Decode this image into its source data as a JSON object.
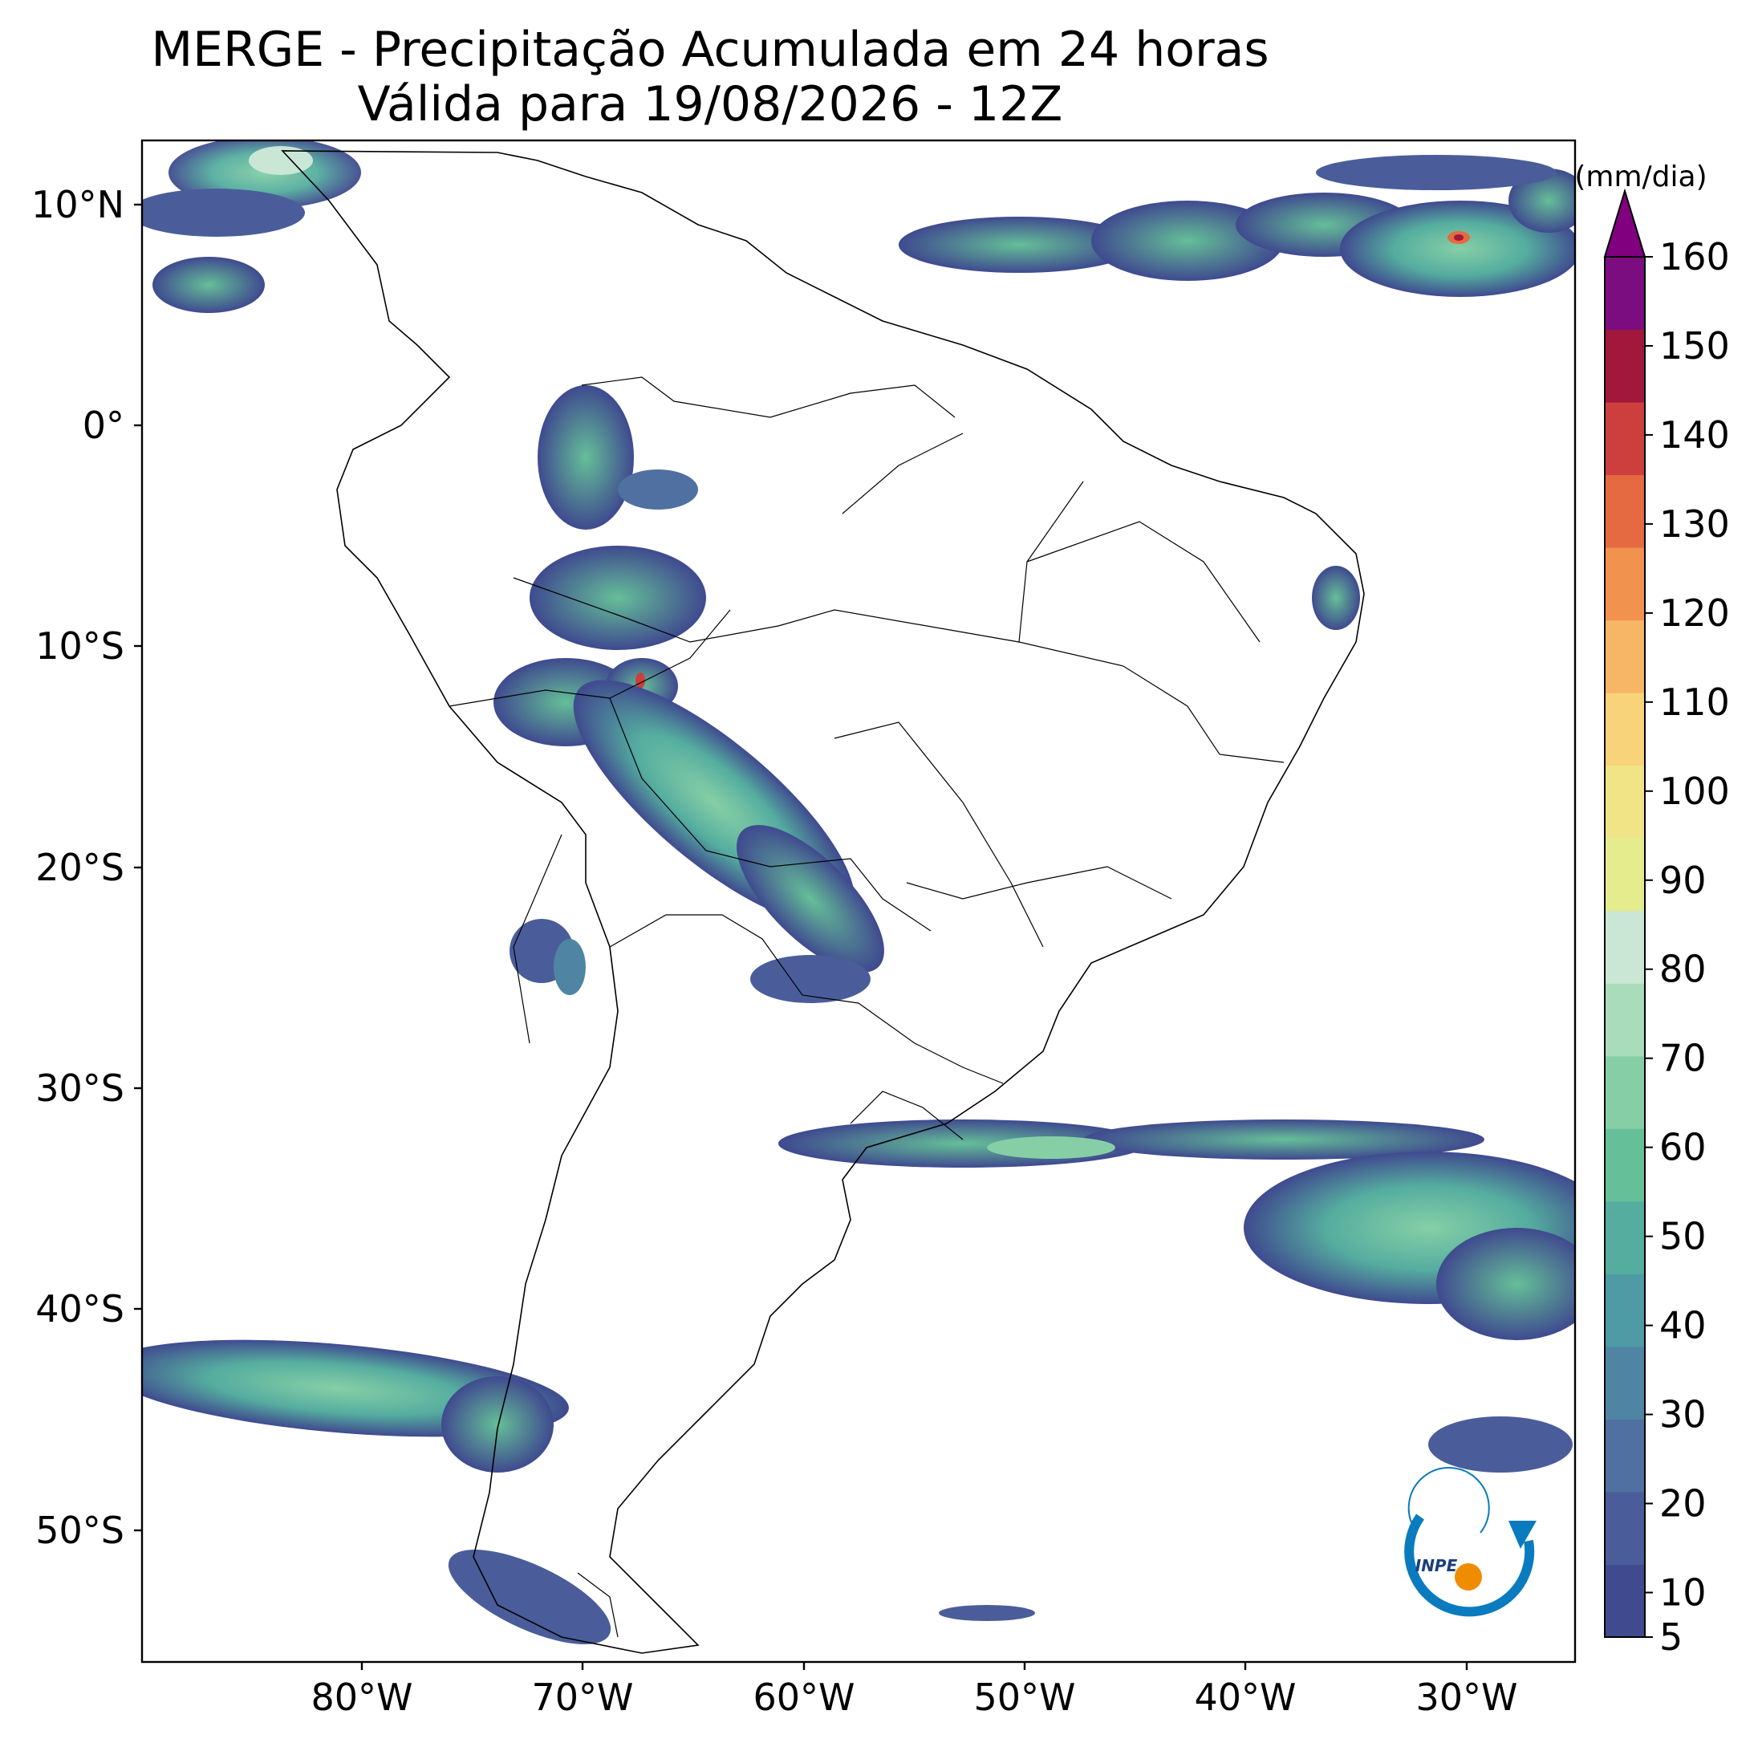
{
  "title": {
    "line1": "MERGE - Precipitação Acumulada em 24 horas",
    "line2": "Válida para 19/08/2026 - 12Z"
  },
  "map": {
    "lat_labels": [
      "10°N",
      "0°",
      "10°S",
      "20°S",
      "30°S",
      "40°S",
      "50°S"
    ],
    "lon_labels": [
      "80°W",
      "70°W",
      "60°W",
      "50°W",
      "40°W",
      "30°W"
    ]
  },
  "colorbar": {
    "units": "(mm/dia)",
    "tick_labels": [
      "5",
      "10",
      "20",
      "30",
      "40",
      "50",
      "60",
      "70",
      "80",
      "90",
      "100",
      "110",
      "120",
      "130",
      "140",
      "150",
      "160"
    ],
    "colors": [
      "#3f4a8f",
      "#4a5d9a",
      "#4f70a0",
      "#4f85a3",
      "#4e9aa5",
      "#55ad9f",
      "#65bf98",
      "#86cfa6",
      "#a9dcba",
      "#cae7d6",
      "#e4ec8e",
      "#f1e487",
      "#f8d37a",
      "#f7b566",
      "#f1924f",
      "#e56a42",
      "#cc3f3c",
      "#a2173c",
      "#7c0d80"
    ],
    "extend_color": "#800080"
  },
  "logo": {
    "text": "INPE"
  }
}
